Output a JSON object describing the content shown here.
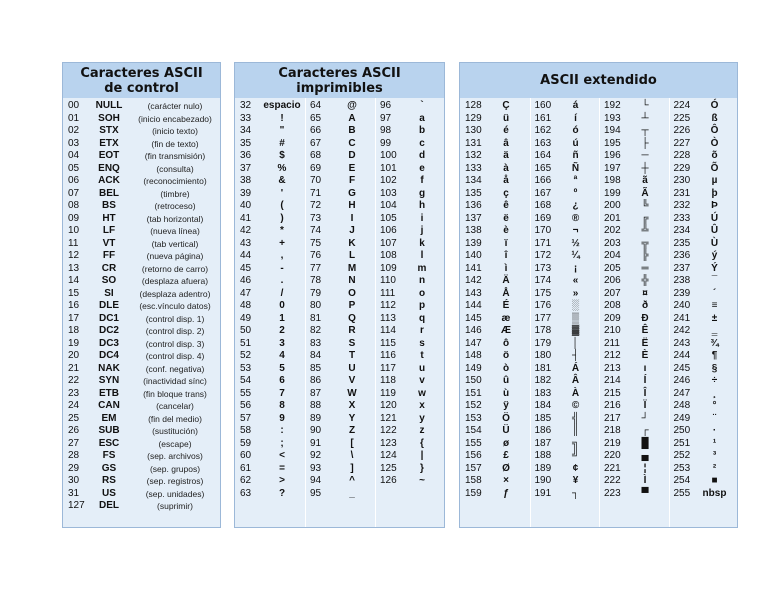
{
  "panels": {
    "control": {
      "title_line1": "Caracteres ASCII",
      "title_line2": "de control"
    },
    "printable": {
      "title_line1": "Caracteres ASCII",
      "title_line2": "imprimibles"
    },
    "extended": {
      "title": "ASCII extendido"
    }
  },
  "control_rows": [
    {
      "dec": "00",
      "abbr": "NULL",
      "desc": "(carácter nulo)"
    },
    {
      "dec": "01",
      "abbr": "SOH",
      "desc": "(inicio encabezado)"
    },
    {
      "dec": "02",
      "abbr": "STX",
      "desc": "(inicio texto)"
    },
    {
      "dec": "03",
      "abbr": "ETX",
      "desc": "(fin de texto)"
    },
    {
      "dec": "04",
      "abbr": "EOT",
      "desc": "(fin transmisión)"
    },
    {
      "dec": "05",
      "abbr": "ENQ",
      "desc": "(consulta)"
    },
    {
      "dec": "06",
      "abbr": "ACK",
      "desc": "(reconocimiento)"
    },
    {
      "dec": "07",
      "abbr": "BEL",
      "desc": "(timbre)"
    },
    {
      "dec": "08",
      "abbr": "BS",
      "desc": "(retroceso)"
    },
    {
      "dec": "09",
      "abbr": "HT",
      "desc": "(tab horizontal)"
    },
    {
      "dec": "10",
      "abbr": "LF",
      "desc": "(nueva línea)"
    },
    {
      "dec": "11",
      "abbr": "VT",
      "desc": "(tab vertical)"
    },
    {
      "dec": "12",
      "abbr": "FF",
      "desc": "(nueva página)"
    },
    {
      "dec": "13",
      "abbr": "CR",
      "desc": "(retorno de carro)"
    },
    {
      "dec": "14",
      "abbr": "SO",
      "desc": "(desplaza afuera)"
    },
    {
      "dec": "15",
      "abbr": "SI",
      "desc": "(desplaza adentro)"
    },
    {
      "dec": "16",
      "abbr": "DLE",
      "desc": "(esc.vínculo datos)"
    },
    {
      "dec": "17",
      "abbr": "DC1",
      "desc": "(control disp. 1)"
    },
    {
      "dec": "18",
      "abbr": "DC2",
      "desc": "(control disp. 2)"
    },
    {
      "dec": "19",
      "abbr": "DC3",
      "desc": "(control disp. 3)"
    },
    {
      "dec": "20",
      "abbr": "DC4",
      "desc": "(control disp. 4)"
    },
    {
      "dec": "21",
      "abbr": "NAK",
      "desc": "(conf. negativa)"
    },
    {
      "dec": "22",
      "abbr": "SYN",
      "desc": "(inactividad sínc)"
    },
    {
      "dec": "23",
      "abbr": "ETB",
      "desc": "(fin bloque trans)"
    },
    {
      "dec": "24",
      "abbr": "CAN",
      "desc": "(cancelar)"
    },
    {
      "dec": "25",
      "abbr": "EM",
      "desc": "(fin del medio)"
    },
    {
      "dec": "26",
      "abbr": "SUB",
      "desc": "(sustitución)"
    },
    {
      "dec": "27",
      "abbr": "ESC",
      "desc": "(escape)"
    },
    {
      "dec": "28",
      "abbr": "FS",
      "desc": "(sep. archivos)"
    },
    {
      "dec": "29",
      "abbr": "GS",
      "desc": "(sep. grupos)"
    },
    {
      "dec": "30",
      "abbr": "RS",
      "desc": "(sep. registros)"
    },
    {
      "dec": "31",
      "abbr": "US",
      "desc": "(sep. unidades)"
    },
    {
      "dec": "127",
      "abbr": "DEL",
      "desc": "(suprimir)"
    }
  ],
  "printable_columns": [
    [
      [
        "32",
        "espacio"
      ],
      [
        "33",
        "!"
      ],
      [
        "34",
        "\""
      ],
      [
        "35",
        "#"
      ],
      [
        "36",
        "$"
      ],
      [
        "37",
        "%"
      ],
      [
        "38",
        "&"
      ],
      [
        "39",
        "'"
      ],
      [
        "40",
        "("
      ],
      [
        "41",
        ")"
      ],
      [
        "42",
        "*"
      ],
      [
        "43",
        "+"
      ],
      [
        "44",
        ","
      ],
      [
        "45",
        "-"
      ],
      [
        "46",
        "."
      ],
      [
        "47",
        "/"
      ],
      [
        "48",
        "0"
      ],
      [
        "49",
        "1"
      ],
      [
        "50",
        "2"
      ],
      [
        "51",
        "3"
      ],
      [
        "52",
        "4"
      ],
      [
        "53",
        "5"
      ],
      [
        "54",
        "6"
      ],
      [
        "55",
        "7"
      ],
      [
        "56",
        "8"
      ],
      [
        "57",
        "9"
      ],
      [
        "58",
        ":"
      ],
      [
        "59",
        ";"
      ],
      [
        "60",
        "<"
      ],
      [
        "61",
        "="
      ],
      [
        "62",
        ">"
      ],
      [
        "63",
        "?"
      ]
    ],
    [
      [
        "64",
        "@"
      ],
      [
        "65",
        "A"
      ],
      [
        "66",
        "B"
      ],
      [
        "67",
        "C"
      ],
      [
        "68",
        "D"
      ],
      [
        "69",
        "E"
      ],
      [
        "70",
        "F"
      ],
      [
        "71",
        "G"
      ],
      [
        "72",
        "H"
      ],
      [
        "73",
        "I"
      ],
      [
        "74",
        "J"
      ],
      [
        "75",
        "K"
      ],
      [
        "76",
        "L"
      ],
      [
        "77",
        "M"
      ],
      [
        "78",
        "N"
      ],
      [
        "79",
        "O"
      ],
      [
        "80",
        "P"
      ],
      [
        "81",
        "Q"
      ],
      [
        "82",
        "R"
      ],
      [
        "83",
        "S"
      ],
      [
        "84",
        "T"
      ],
      [
        "85",
        "U"
      ],
      [
        "86",
        "V"
      ],
      [
        "87",
        "W"
      ],
      [
        "88",
        "X"
      ],
      [
        "89",
        "Y"
      ],
      [
        "90",
        "Z"
      ],
      [
        "91",
        "["
      ],
      [
        "92",
        "\\"
      ],
      [
        "93",
        "]"
      ],
      [
        "94",
        "^"
      ],
      [
        "95",
        "_"
      ]
    ],
    [
      [
        "96",
        "`"
      ],
      [
        "97",
        "a"
      ],
      [
        "98",
        "b"
      ],
      [
        "99",
        "c"
      ],
      [
        "100",
        "d"
      ],
      [
        "101",
        "e"
      ],
      [
        "102",
        "f"
      ],
      [
        "103",
        "g"
      ],
      [
        "104",
        "h"
      ],
      [
        "105",
        "i"
      ],
      [
        "106",
        "j"
      ],
      [
        "107",
        "k"
      ],
      [
        "108",
        "l"
      ],
      [
        "109",
        "m"
      ],
      [
        "110",
        "n"
      ],
      [
        "111",
        "o"
      ],
      [
        "112",
        "p"
      ],
      [
        "113",
        "q"
      ],
      [
        "114",
        "r"
      ],
      [
        "115",
        "s"
      ],
      [
        "116",
        "t"
      ],
      [
        "117",
        "u"
      ],
      [
        "118",
        "v"
      ],
      [
        "119",
        "w"
      ],
      [
        "120",
        "x"
      ],
      [
        "121",
        "y"
      ],
      [
        "122",
        "z"
      ],
      [
        "123",
        "{"
      ],
      [
        "124",
        "|"
      ],
      [
        "125",
        "}"
      ],
      [
        "126",
        "~"
      ]
    ]
  ],
  "extended_columns": [
    [
      [
        "128",
        "Ç"
      ],
      [
        "129",
        "ü"
      ],
      [
        "130",
        "é"
      ],
      [
        "131",
        "â"
      ],
      [
        "132",
        "ä"
      ],
      [
        "133",
        "à"
      ],
      [
        "134",
        "å"
      ],
      [
        "135",
        "ç"
      ],
      [
        "136",
        "ê"
      ],
      [
        "137",
        "ë"
      ],
      [
        "138",
        "è"
      ],
      [
        "139",
        "ï"
      ],
      [
        "140",
        "î"
      ],
      [
        "141",
        "ì"
      ],
      [
        "142",
        "Ä"
      ],
      [
        "143",
        "Å"
      ],
      [
        "144",
        "É"
      ],
      [
        "145",
        "æ"
      ],
      [
        "146",
        "Æ"
      ],
      [
        "147",
        "ô"
      ],
      [
        "148",
        "ö"
      ],
      [
        "149",
        "ò"
      ],
      [
        "150",
        "û"
      ],
      [
        "151",
        "ù"
      ],
      [
        "152",
        "ÿ"
      ],
      [
        "153",
        "Ö"
      ],
      [
        "154",
        "Ü"
      ],
      [
        "155",
        "ø"
      ],
      [
        "156",
        "£"
      ],
      [
        "157",
        "Ø"
      ],
      [
        "158",
        "×"
      ],
      [
        "159",
        "ƒ"
      ]
    ],
    [
      [
        "160",
        "á"
      ],
      [
        "161",
        "í"
      ],
      [
        "162",
        "ó"
      ],
      [
        "163",
        "ú"
      ],
      [
        "164",
        "ñ"
      ],
      [
        "165",
        "Ñ"
      ],
      [
        "166",
        "ª"
      ],
      [
        "167",
        "º"
      ],
      [
        "168",
        "¿"
      ],
      [
        "169",
        "®"
      ],
      [
        "170",
        "¬"
      ],
      [
        "171",
        "½"
      ],
      [
        "172",
        "¼"
      ],
      [
        "173",
        "¡"
      ],
      [
        "174",
        "«"
      ],
      [
        "175",
        "»"
      ],
      [
        "176",
        "░"
      ],
      [
        "177",
        "▒"
      ],
      [
        "178",
        "▓"
      ],
      [
        "179",
        "│"
      ],
      [
        "180",
        "┤"
      ],
      [
        "181",
        "Á"
      ],
      [
        "182",
        "Â"
      ],
      [
        "183",
        "À"
      ],
      [
        "184",
        "©"
      ],
      [
        "185",
        "╣"
      ],
      [
        "186",
        "║"
      ],
      [
        "187",
        "╗"
      ],
      [
        "188",
        "╝"
      ],
      [
        "189",
        "¢"
      ],
      [
        "190",
        "¥"
      ],
      [
        "191",
        "┐"
      ]
    ],
    [
      [
        "192",
        "└"
      ],
      [
        "193",
        "┴"
      ],
      [
        "194",
        "┬"
      ],
      [
        "195",
        "├"
      ],
      [
        "196",
        "─"
      ],
      [
        "197",
        "┼"
      ],
      [
        "198",
        "ã"
      ],
      [
        "199",
        "Ã"
      ],
      [
        "200",
        "╚"
      ],
      [
        "201",
        "╔"
      ],
      [
        "202",
        "╩"
      ],
      [
        "203",
        "╦"
      ],
      [
        "204",
        "╠"
      ],
      [
        "205",
        "═"
      ],
      [
        "206",
        "╬"
      ],
      [
        "207",
        "¤"
      ],
      [
        "208",
        "ð"
      ],
      [
        "209",
        "Ð"
      ],
      [
        "210",
        "Ê"
      ],
      [
        "211",
        "Ë"
      ],
      [
        "212",
        "È"
      ],
      [
        "213",
        "ı"
      ],
      [
        "214",
        "Í"
      ],
      [
        "215",
        "Î"
      ],
      [
        "216",
        "Ï"
      ],
      [
        "217",
        "┘"
      ],
      [
        "218",
        "┌"
      ],
      [
        "219",
        "█"
      ],
      [
        "220",
        "▄"
      ],
      [
        "221",
        "¦"
      ],
      [
        "222",
        "Ì"
      ],
      [
        "223",
        "▀"
      ]
    ],
    [
      [
        "224",
        "Ó"
      ],
      [
        "225",
        "ß"
      ],
      [
        "226",
        "Ô"
      ],
      [
        "227",
        "Ò"
      ],
      [
        "228",
        "õ"
      ],
      [
        "229",
        "Õ"
      ],
      [
        "230",
        "µ"
      ],
      [
        "231",
        "þ"
      ],
      [
        "232",
        "Þ"
      ],
      [
        "233",
        "Ú"
      ],
      [
        "234",
        "Û"
      ],
      [
        "235",
        "Ù"
      ],
      [
        "236",
        "ý"
      ],
      [
        "237",
        "Ý"
      ],
      [
        "238",
        "¯"
      ],
      [
        "239",
        "´"
      ],
      [
        "240",
        "≡"
      ],
      [
        "241",
        "±"
      ],
      [
        "242",
        "‗"
      ],
      [
        "243",
        "¾"
      ],
      [
        "244",
        "¶"
      ],
      [
        "245",
        "§"
      ],
      [
        "246",
        "÷"
      ],
      [
        "247",
        "¸"
      ],
      [
        "248",
        "°"
      ],
      [
        "249",
        "¨"
      ],
      [
        "250",
        "·"
      ],
      [
        "251",
        "¹"
      ],
      [
        "252",
        "³"
      ],
      [
        "253",
        "²"
      ],
      [
        "254",
        "■"
      ],
      [
        "255",
        "nbsp"
      ]
    ]
  ]
}
